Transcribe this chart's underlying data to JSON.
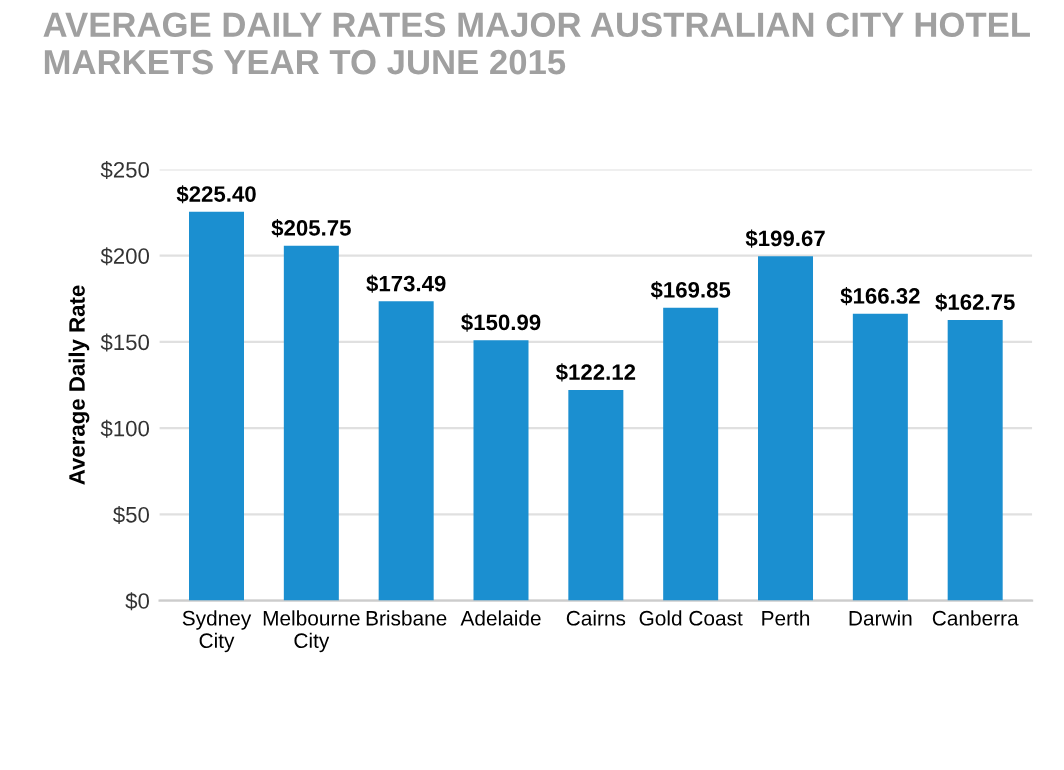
{
  "chart_data": {
    "type": "bar",
    "title": "AVERAGE DAILY RATES MAJOR AUSTRALIAN CITY HOTEL\nMARKETS YEAR TO JUNE 2015",
    "ylabel": "Average Daily Rate",
    "categories": [
      "Sydney\nCity",
      "Melbourne\nCity",
      "Brisbane",
      "Adelaide",
      "Cairns",
      "Gold Coast",
      "Perth",
      "Darwin",
      "Canberra"
    ],
    "values": [
      225.4,
      205.75,
      173.49,
      150.99,
      122.12,
      169.85,
      199.67,
      166.32,
      162.75
    ],
    "value_labels": [
      "$225.40",
      "$205.75",
      "$173.49",
      "$150.99",
      "$122.12",
      "$169.85",
      "$199.67",
      "$166.32",
      "$162.75"
    ],
    "color": "#1b8fd0",
    "ylim": [
      0,
      250
    ],
    "yticks": [
      {
        "value": 0,
        "label": "$0"
      },
      {
        "value": 50,
        "label": "$50"
      },
      {
        "value": 100,
        "label": "$100"
      },
      {
        "value": 150,
        "label": "$150"
      },
      {
        "value": 200,
        "label": "$200"
      },
      {
        "value": 250,
        "label": "$250"
      }
    ],
    "grid": "y"
  }
}
